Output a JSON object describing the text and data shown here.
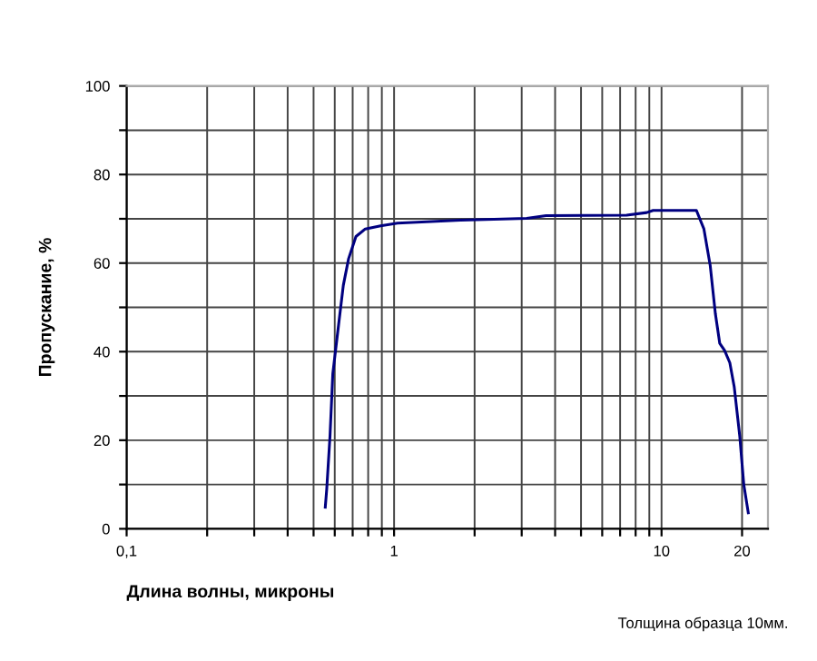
{
  "chart_data": {
    "type": "line",
    "xlabel": "Длина волны, микроны",
    "ylabel": "Пропускание, %",
    "annotations": [
      "Толщина образца 10мм."
    ],
    "log": "x",
    "xlim": [
      0.1,
      25
    ],
    "ylim": [
      0,
      100
    ],
    "xticks": [
      {
        "value": 0.1,
        "label": "0,1"
      },
      {
        "value": 0.2,
        "label": null
      },
      {
        "value": 0.3,
        "label": null
      },
      {
        "value": 0.4,
        "label": null
      },
      {
        "value": 0.5,
        "label": null
      },
      {
        "value": 0.6,
        "label": null
      },
      {
        "value": 0.7,
        "label": null
      },
      {
        "value": 0.8,
        "label": null
      },
      {
        "value": 0.9,
        "label": null
      },
      1,
      {
        "value": 2,
        "label": null
      },
      {
        "value": 3,
        "label": null
      },
      {
        "value": 4,
        "label": null
      },
      {
        "value": 5,
        "label": null
      },
      {
        "value": 6,
        "label": null
      },
      {
        "value": 7,
        "label": null
      },
      {
        "value": 8,
        "label": null
      },
      {
        "value": 9,
        "label": null
      },
      10,
      20
    ],
    "yticks": [
      0,
      {
        "value": 10,
        "label": null
      },
      20,
      {
        "value": 30,
        "label": null
      },
      40,
      {
        "value": 50,
        "label": null
      },
      60,
      {
        "value": 70,
        "label": null
      },
      80,
      {
        "value": 90,
        "label": null
      },
      100
    ],
    "grid": true,
    "marker": "none",
    "line_style": "solid",
    "series": [
      {
        "color": "#000080",
        "x": [
          0.553,
          0.56,
          0.576,
          0.59,
          0.62,
          0.646,
          0.676,
          0.72,
          0.78,
          0.89,
          1.03,
          1.77,
          3.13,
          3.7,
          7.4,
          8.8,
          9.3,
          13.5,
          14.4,
          15.2,
          15.9,
          16.5,
          17.2,
          18.0,
          18.7,
          19.6,
          20.3,
          21.1
        ],
        "values": [
          4.9,
          9,
          21,
          35,
          46,
          55,
          61,
          66,
          67.7,
          68.4,
          69,
          69.7,
          70.1,
          70.7,
          70.8,
          71.4,
          71.9,
          71.9,
          67.7,
          59.5,
          48.5,
          41.9,
          40.3,
          37.5,
          32,
          21,
          10,
          3.6
        ]
      }
    ]
  }
}
